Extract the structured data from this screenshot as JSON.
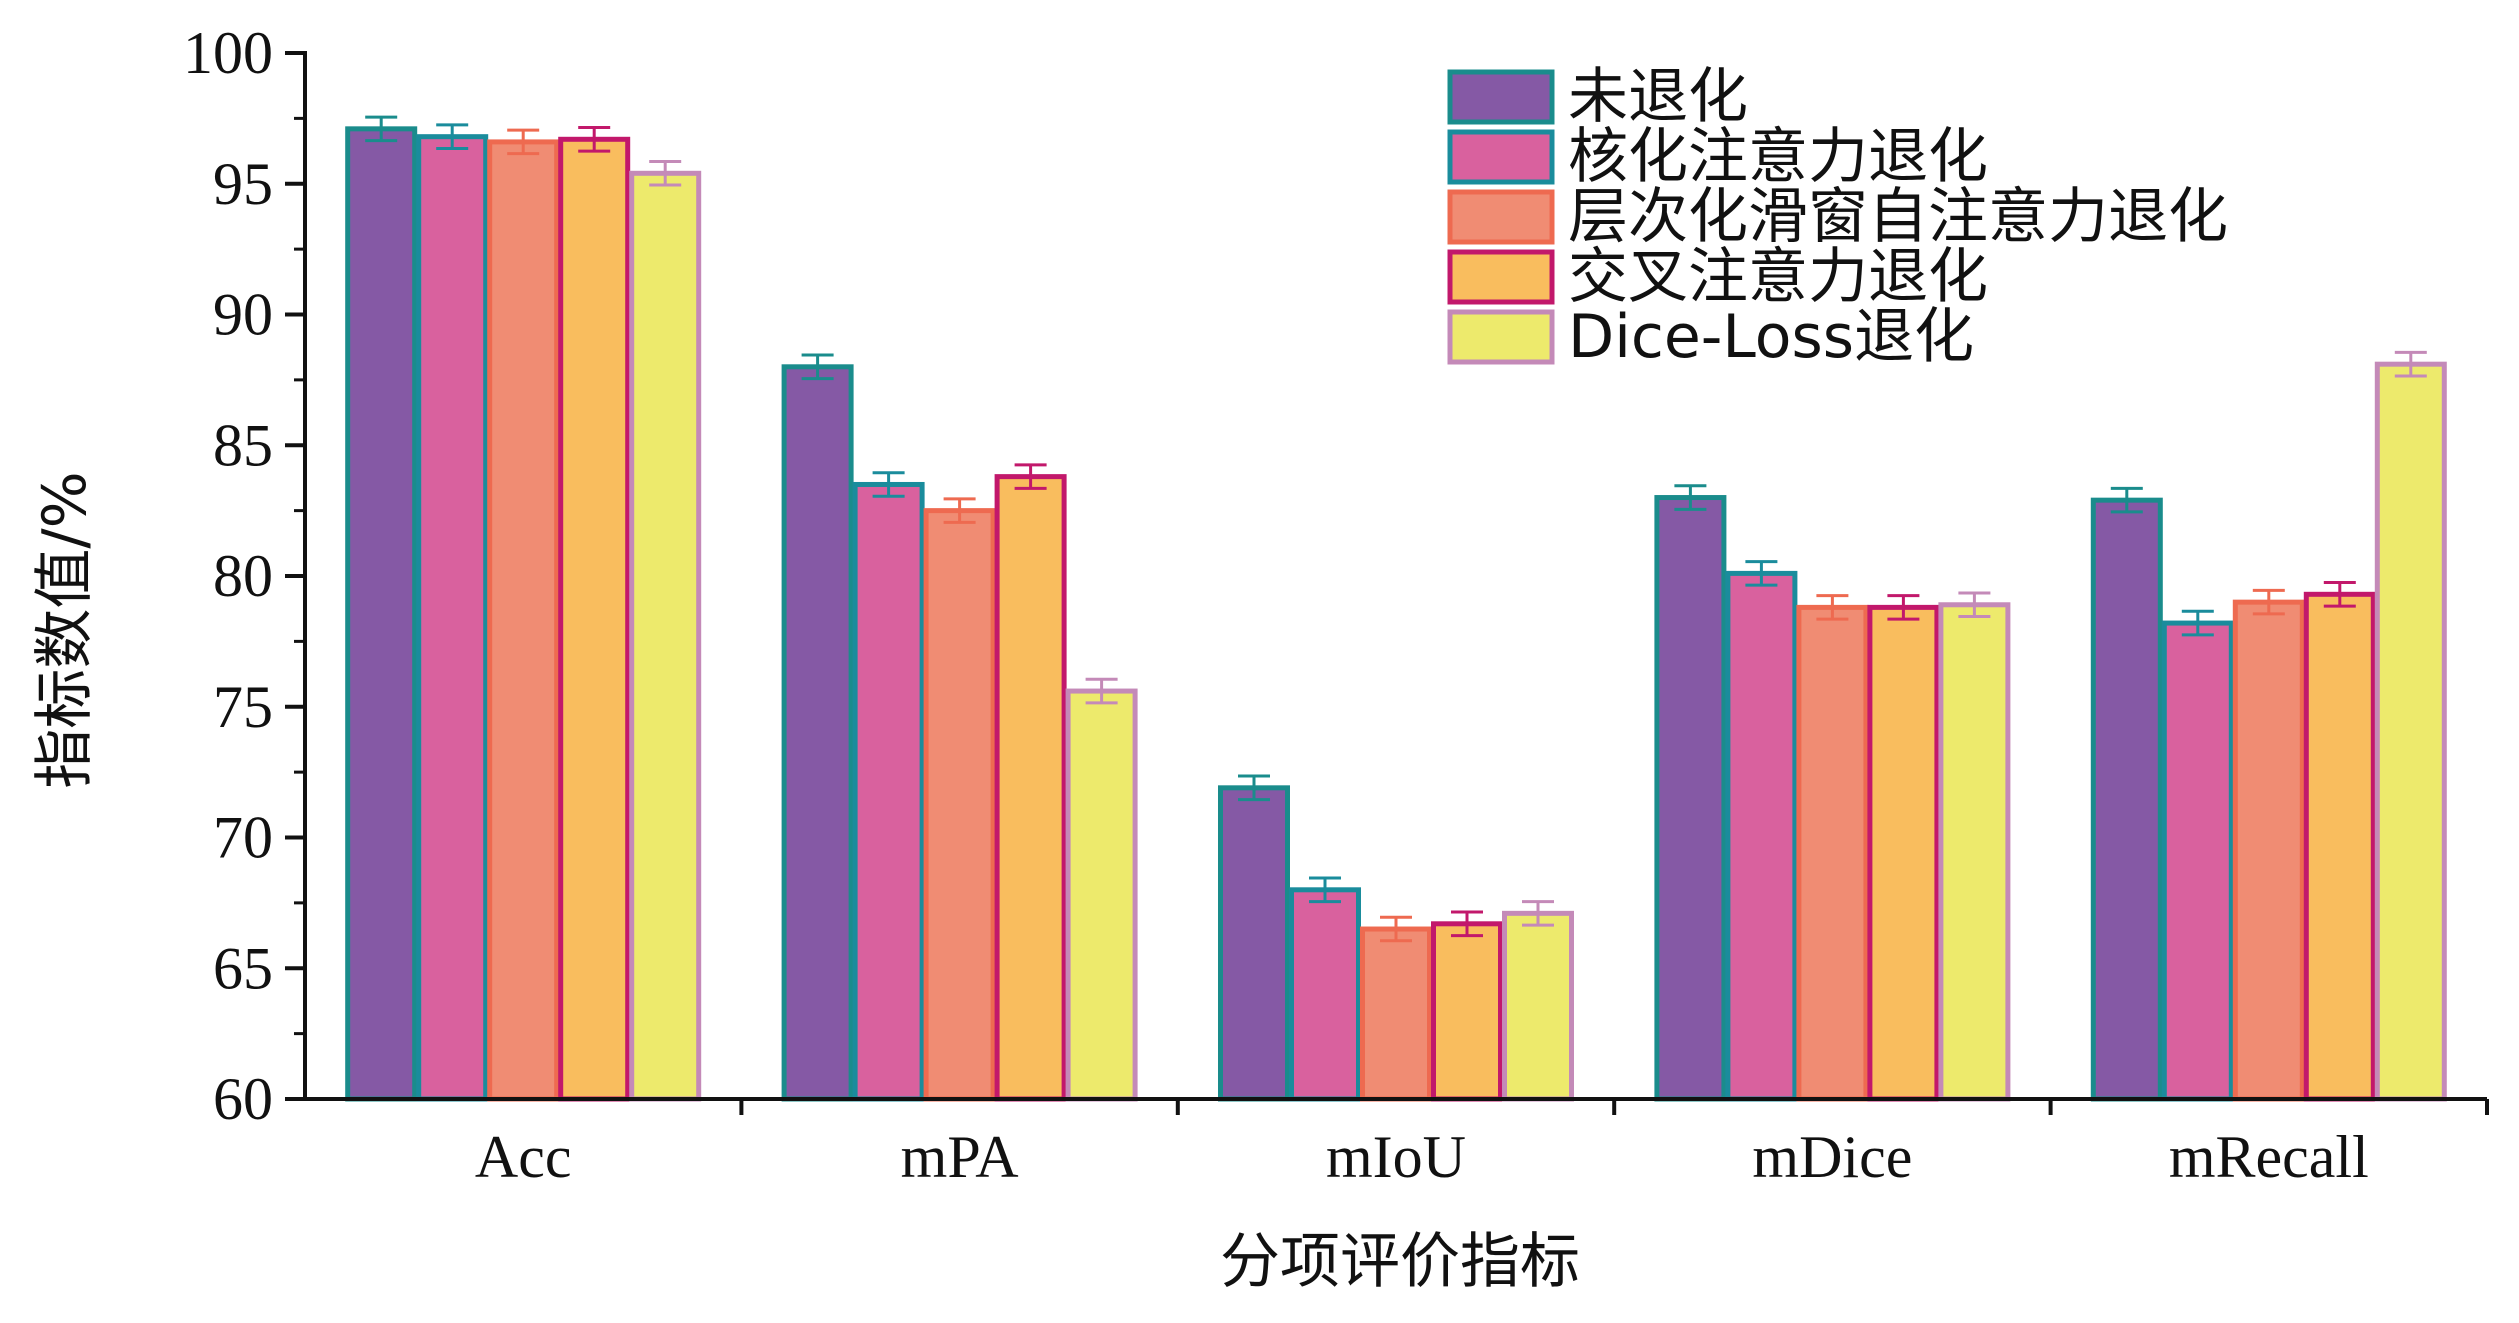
{
  "chart_data": {
    "type": "bar",
    "xlabel": "分项评价指标",
    "ylabel": "指标数值/%",
    "ylim": [
      60,
      100
    ],
    "yticks": [
      60,
      65,
      70,
      75,
      80,
      85,
      90,
      95,
      100
    ],
    "grid": false,
    "legend_position": "top-right",
    "categories": [
      "Acc",
      "mPA",
      "mIoU",
      "mDice",
      "mRecall"
    ],
    "series": [
      {
        "name": "未退化",
        "fill": "#8559A5",
        "stroke": "#1A8C8C",
        "values": [
          97.1,
          88.0,
          71.9,
          83.0,
          82.9
        ],
        "errors": [
          0.45,
          0.45,
          0.45,
          0.45,
          0.45
        ]
      },
      {
        "name": "核化注意力退化",
        "fill": "#D9619E",
        "stroke": "#1A8C9C",
        "values": [
          96.8,
          83.5,
          68.0,
          80.1,
          78.2
        ],
        "errors": [
          0.45,
          0.45,
          0.45,
          0.45,
          0.45
        ]
      },
      {
        "name": "层次化滑窗自注意力退化",
        "fill": "#F08C73",
        "stroke": "#EE6A50",
        "values": [
          96.6,
          82.5,
          66.5,
          78.8,
          79.0
        ],
        "errors": [
          0.45,
          0.45,
          0.45,
          0.45,
          0.45
        ]
      },
      {
        "name": "交叉注意力退化",
        "fill": "#F9BD5E",
        "stroke": "#C2186B",
        "values": [
          96.7,
          83.8,
          66.7,
          78.8,
          79.3
        ],
        "errors": [
          0.45,
          0.45,
          0.45,
          0.45,
          0.45
        ]
      },
      {
        "name": "Dice-Loss退化",
        "fill": "#EDEA6C",
        "stroke": "#C48AB8",
        "values": [
          95.4,
          75.6,
          67.1,
          78.9,
          88.1
        ],
        "errors": [
          0.45,
          0.45,
          0.45,
          0.45,
          0.45
        ]
      }
    ]
  }
}
